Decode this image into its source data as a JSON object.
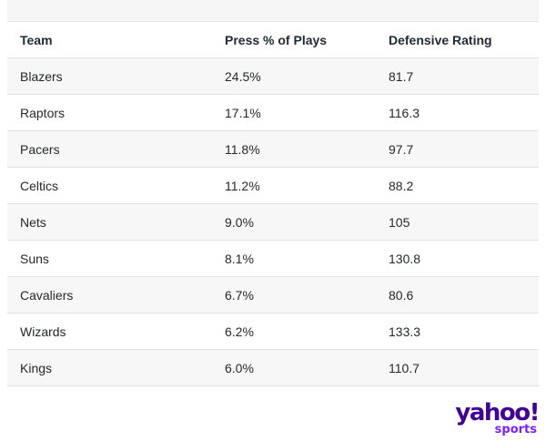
{
  "table": {
    "headers": [
      "Team",
      "Press % of Plays",
      "Defensive Rating"
    ],
    "rows": [
      [
        "Blazers",
        "24.5%",
        "81.7"
      ],
      [
        "Raptors",
        "17.1%",
        "116.3"
      ],
      [
        "Pacers",
        "11.8%",
        "97.7"
      ],
      [
        "Celtics",
        "11.2%",
        "88.2"
      ],
      [
        "Nets",
        "9.0%",
        "105"
      ],
      [
        "Suns",
        "8.1%",
        "130.8"
      ],
      [
        "Cavaliers",
        "6.7%",
        "80.6"
      ],
      [
        "Wizards",
        "6.2%",
        "133.3"
      ],
      [
        "Kings",
        "6.0%",
        "110.7"
      ]
    ]
  },
  "logo": {
    "brand": "yahoo!",
    "section": "sports",
    "colors": {
      "brand": "#410093",
      "section": "#7e1fff"
    }
  }
}
